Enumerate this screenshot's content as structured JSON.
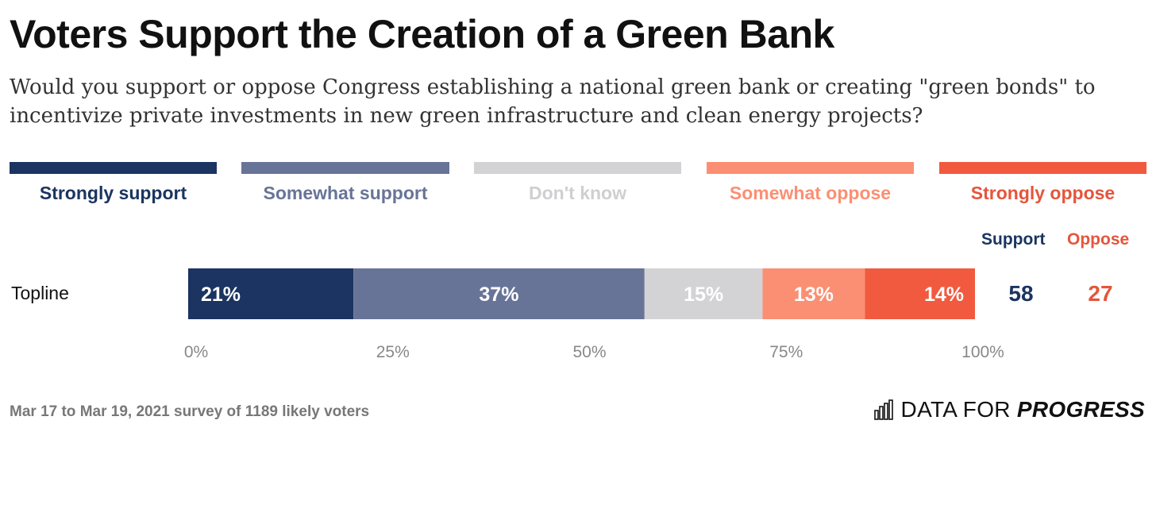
{
  "title": "Voters Support the Creation of a Green Bank",
  "subtitle": "Would you support or oppose Congress establishing a national green bank or creating \"green bonds\" to incentivize private investments in new green infrastructure and clean energy projects?",
  "legend": [
    {
      "label": "Strongly support",
      "color": "#1b3461",
      "text_color": "#1b3461"
    },
    {
      "label": "Somewhat support",
      "color": "#687497",
      "text_color": "#687497"
    },
    {
      "label": "Don't know",
      "color": "#d3d3d6",
      "text_color": "#cfcfd2"
    },
    {
      "label": "Somewhat oppose",
      "color": "#fb8f73",
      "text_color": "#fb8f73"
    },
    {
      "label": "Strongly oppose",
      "color": "#f15a3f",
      "text_color": "#e5553b"
    }
  ],
  "net_headers": {
    "support": "Support",
    "oppose": "Oppose"
  },
  "chart_data": {
    "type": "bar",
    "orientation": "horizontal-stacked",
    "categories": [
      "Topline"
    ],
    "series": [
      {
        "name": "Strongly support",
        "values": [
          21
        ],
        "label": "21%"
      },
      {
        "name": "Somewhat support",
        "values": [
          37
        ],
        "label": "37%"
      },
      {
        "name": "Don't know",
        "values": [
          15
        ],
        "label": "15%"
      },
      {
        "name": "Somewhat oppose",
        "values": [
          13
        ],
        "label": "13%"
      },
      {
        "name": "Strongly oppose",
        "values": [
          14
        ],
        "label": "14%"
      }
    ],
    "net": [
      {
        "support": 58,
        "oppose": 27
      }
    ],
    "xlim": [
      0,
      100
    ],
    "xticks": [
      "0%",
      "25%",
      "50%",
      "75%",
      "100%"
    ]
  },
  "footer": {
    "note": "Mar 17 to Mar 19, 2021 survey of 1189 likely voters",
    "logo_light": "DATA FOR ",
    "logo_bold": "PROGRESS"
  },
  "colors": {
    "support": "#1b3461",
    "oppose": "#e5553b",
    "tick": "#888888"
  }
}
